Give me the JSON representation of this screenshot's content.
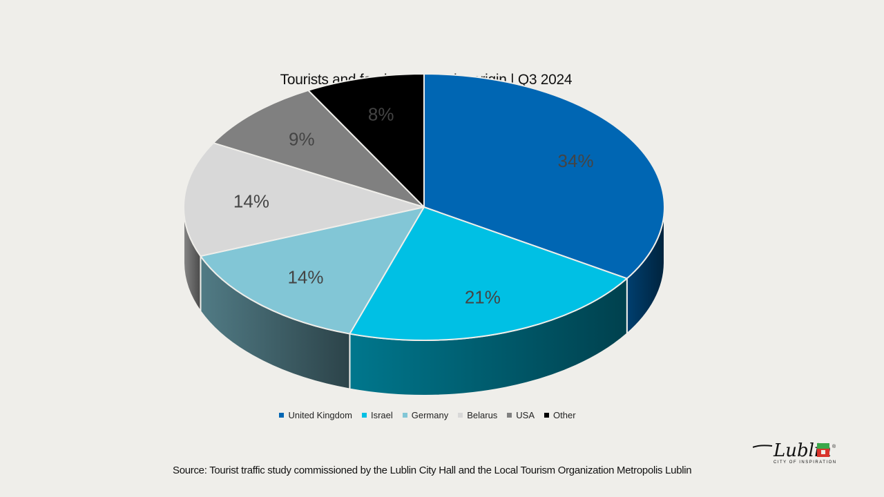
{
  "chart_data": {
    "type": "pie",
    "title": "Tourists and foreign visitors by origin | Q3 2024",
    "categories": [
      "United Kingdom",
      "Israel",
      "Germany",
      "Belarus",
      "USA",
      "Other"
    ],
    "values": [
      34,
      21,
      14,
      14,
      9,
      8
    ],
    "labels": [
      "34%",
      "21%",
      "14%",
      "14%",
      "9%",
      "8%"
    ],
    "colors": [
      "#0066b3",
      "#00c0e4",
      "#82c6d6",
      "#d8d8d8",
      "#808080",
      "#000000"
    ],
    "legend_position": "bottom",
    "style": "3d"
  },
  "source": "Source: Tourist traffic study commissioned by the Lublin City Hall and the Local Tourism Organization Metropolis Lublin",
  "logo": {
    "name": "Lublin",
    "tagline": "CITY OF INSPIRATION",
    "mark": "®"
  }
}
